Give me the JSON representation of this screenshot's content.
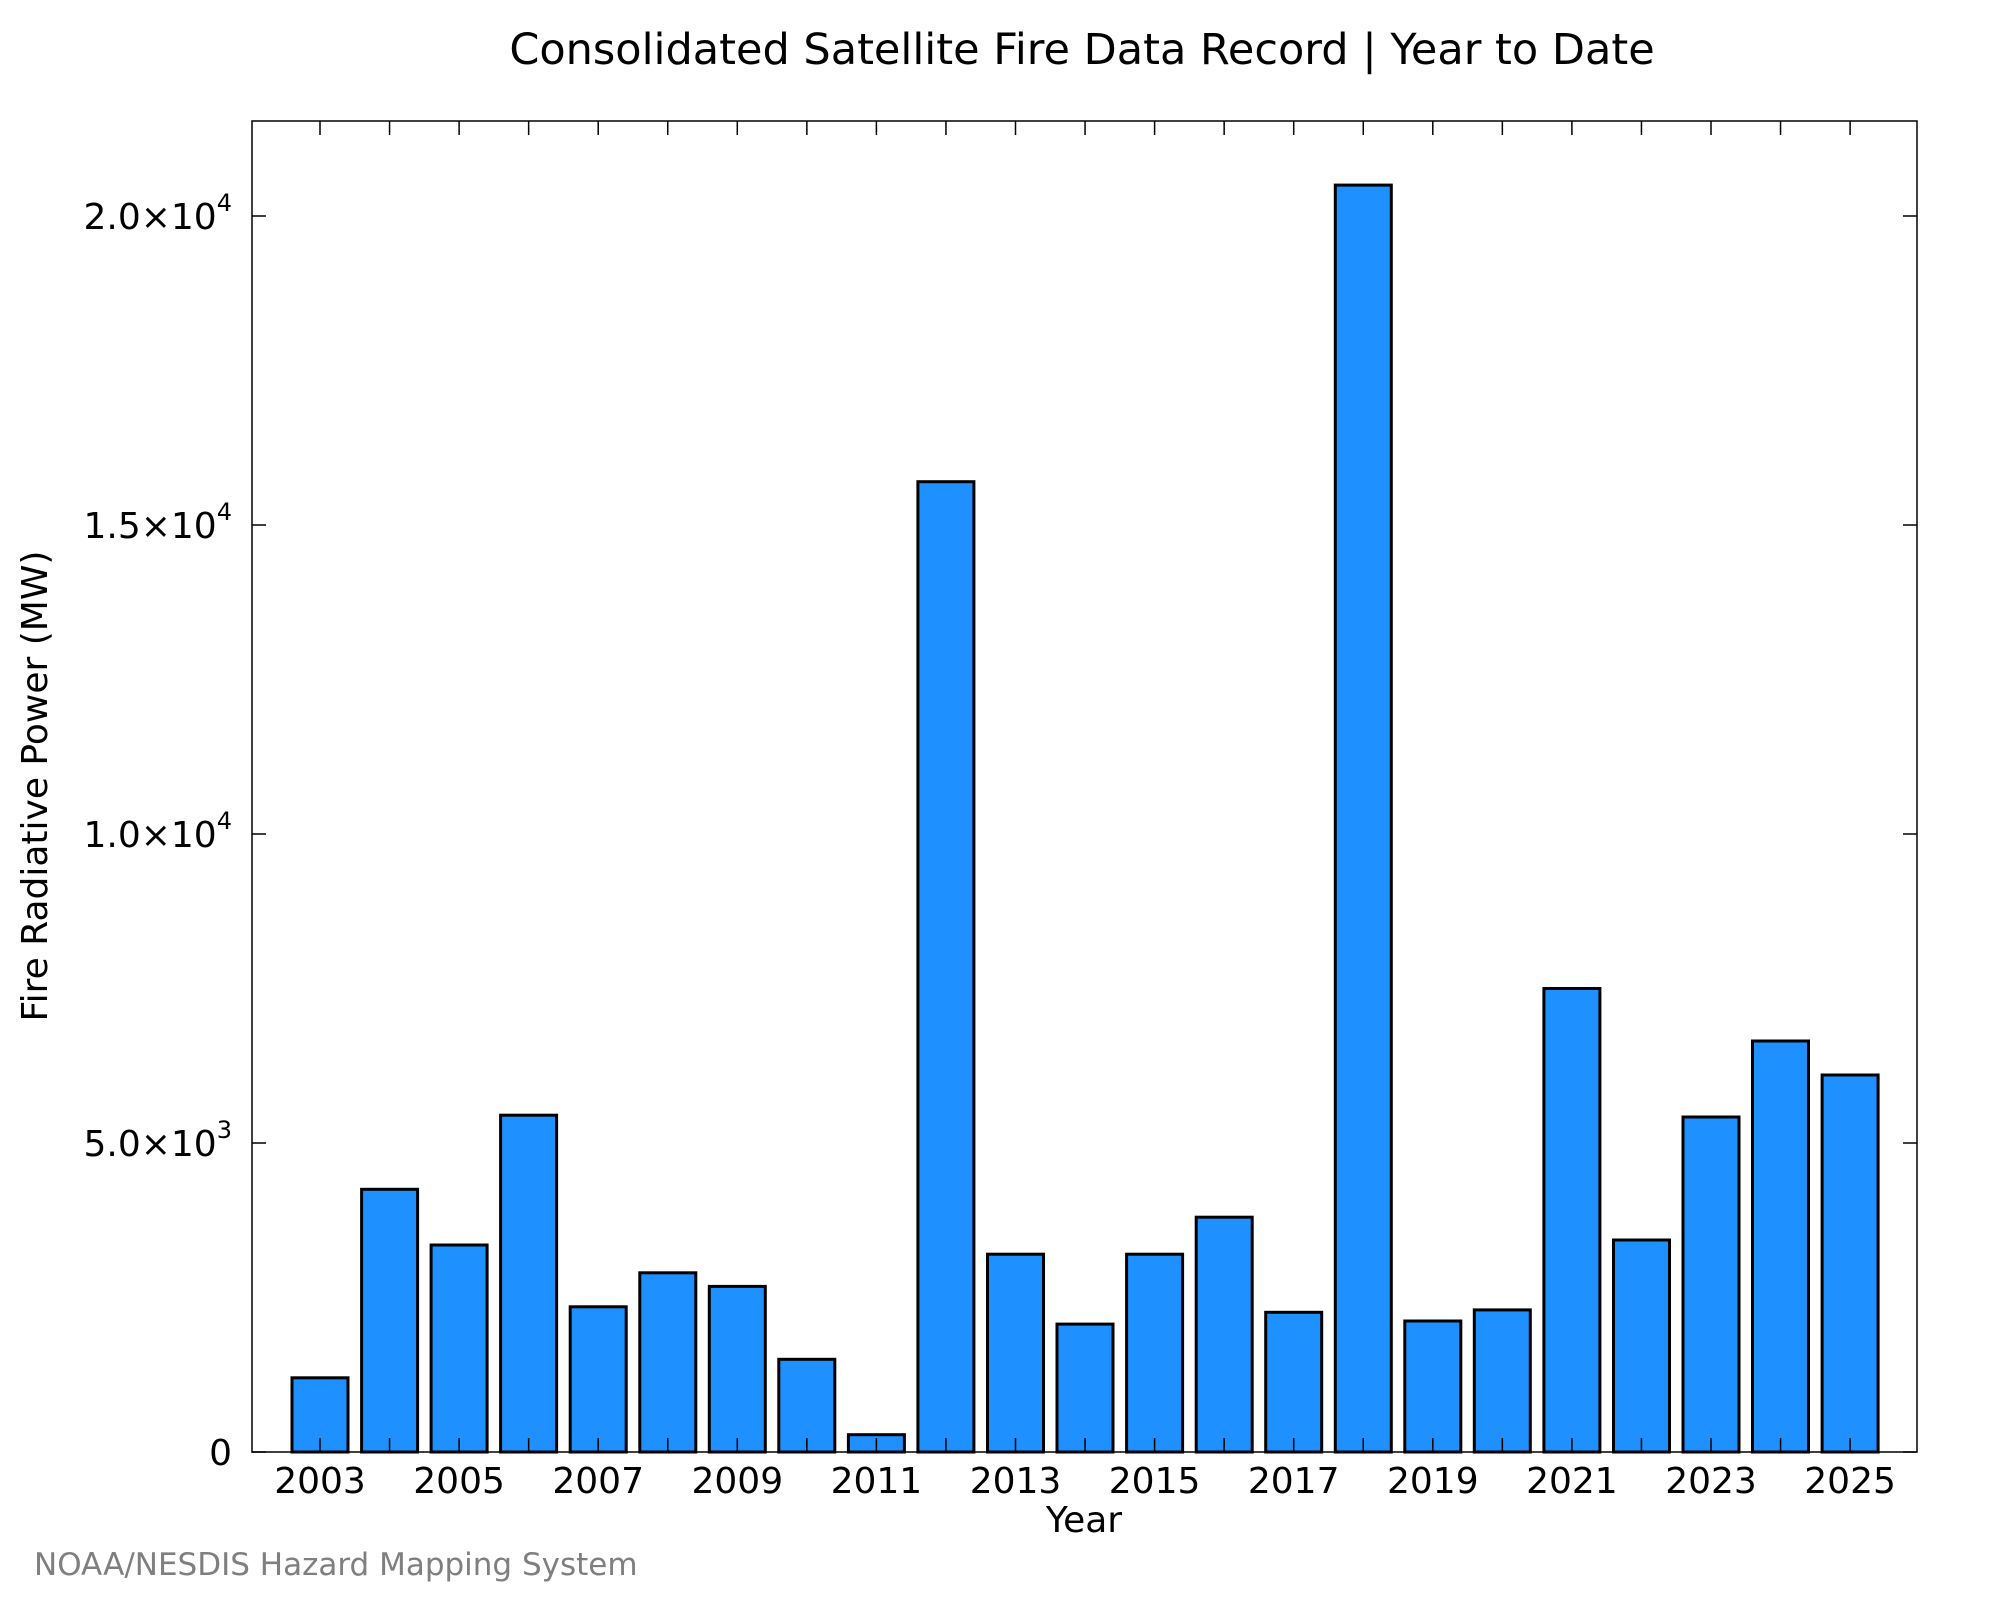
{
  "chart_data": {
    "type": "bar",
    "title": "Consolidated Satellite Fire Data Record | Year to Date",
    "xlabel": "Year",
    "ylabel": "Fire Radiative Power (MW)",
    "categories": [
      "2003",
      "2004",
      "2005",
      "2006",
      "2007",
      "2008",
      "2009",
      "2010",
      "2011",
      "2012",
      "2013",
      "2014",
      "2015",
      "2016",
      "2017",
      "2018",
      "2019",
      "2020",
      "2021",
      "2022",
      "2023",
      "2024",
      "2025"
    ],
    "values": [
      1200,
      4250,
      3350,
      5450,
      2350,
      2900,
      2680,
      1500,
      280,
      15700,
      3200,
      2070,
      3200,
      3800,
      2260,
      20500,
      2120,
      2300,
      7500,
      3430,
      5420,
      6650,
      6100
    ],
    "x_tick_labels": [
      "2003",
      "2005",
      "2007",
      "2009",
      "2011",
      "2013",
      "2015",
      "2017",
      "2019",
      "2021",
      "2023",
      "2025"
    ],
    "y_ticks": [
      {
        "value": 0,
        "mantissa": "0",
        "exponent": ""
      },
      {
        "value": 5000,
        "mantissa": "5.0×10",
        "exponent": "3"
      },
      {
        "value": 10000,
        "mantissa": "1.0×10",
        "exponent": "4"
      },
      {
        "value": 15000,
        "mantissa": "1.5×10",
        "exponent": "4"
      },
      {
        "value": 20000,
        "mantissa": "2.0×10",
        "exponent": "4"
      }
    ],
    "ylim": [
      0,
      21500
    ],
    "grid": false,
    "bar_color": "#1e90ff",
    "footer": "NOAA/NESDIS Hazard Mapping System"
  }
}
